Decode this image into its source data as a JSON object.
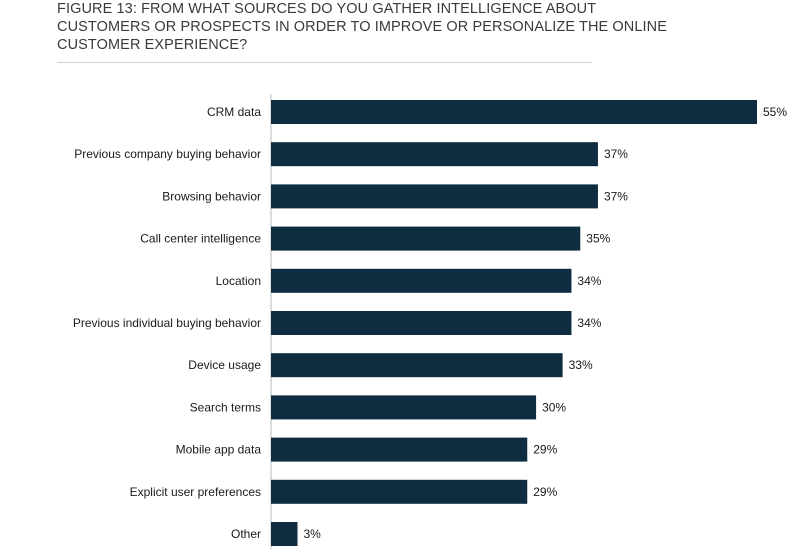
{
  "figure": {
    "title_lines": [
      "FIGURE 13: FROM WHAT SOURCES DO YOU GATHER INTELLIGENCE ABOUT",
      "CUSTOMERS OR PROSPECTS IN ORDER TO IMPROVE OR PERSONALIZE THE ONLINE",
      "CUSTOMER EXPERIENCE?"
    ]
  },
  "chart_data": {
    "type": "bar",
    "orientation": "horizontal",
    "categories": [
      "CRM data",
      "Previous company buying behavior",
      "Browsing behavior",
      "Call center intelligence",
      "Location",
      "Previous individual buying behavior",
      "Device usage",
      "Search terms",
      "Mobile app data",
      "Explicit user preferences",
      "Other"
    ],
    "values": [
      55,
      37,
      37,
      35,
      34,
      34,
      33,
      30,
      29,
      29,
      3
    ],
    "value_labels": [
      "55%",
      "37%",
      "37%",
      "35%",
      "34%",
      "34%",
      "33%",
      "30%",
      "29%",
      "29%",
      "3%"
    ],
    "bar_color": "#0e2d40",
    "xlim": [
      0,
      55
    ],
    "grid": false,
    "legend": "none"
  }
}
